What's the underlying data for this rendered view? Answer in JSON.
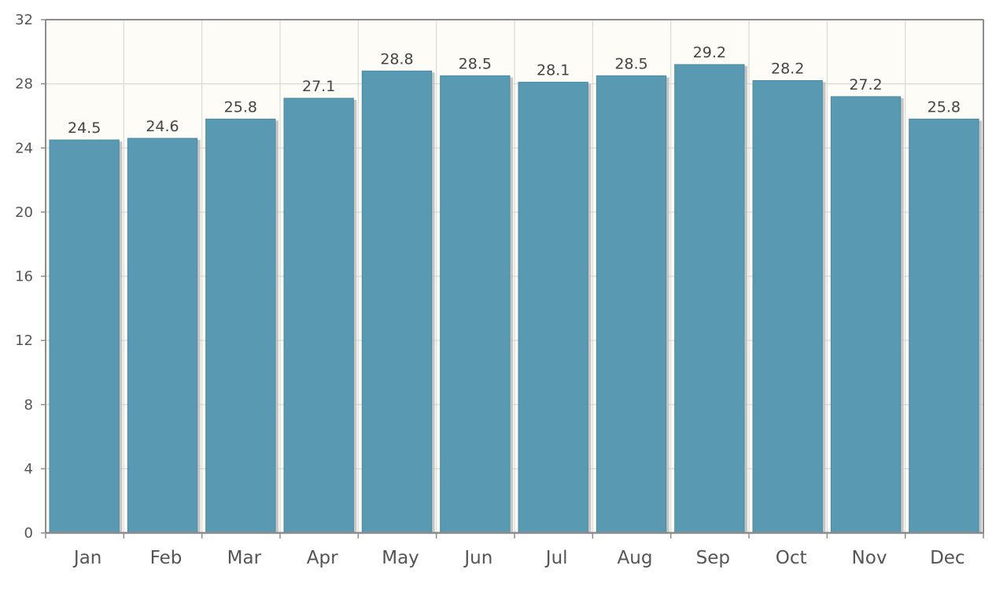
{
  "chart_data": {
    "type": "bar",
    "categories": [
      "Jan",
      "Feb",
      "Mar",
      "Apr",
      "May",
      "Jun",
      "Jul",
      "Aug",
      "Sep",
      "Oct",
      "Nov",
      "Dec"
    ],
    "values": [
      24.5,
      24.6,
      25.8,
      27.1,
      28.8,
      28.5,
      28.1,
      28.5,
      29.2,
      28.2,
      27.2,
      25.8
    ],
    "data_labels": [
      "24.5",
      "24.6",
      "25.8",
      "27.1",
      "28.8",
      "28.5",
      "28.1",
      "28.5",
      "29.2",
      "28.2",
      "27.2",
      "25.8"
    ],
    "y_ticks": [
      0,
      4,
      8,
      12,
      16,
      20,
      24,
      28,
      32
    ],
    "ylim": [
      0,
      32
    ],
    "title": "",
    "xlabel": "",
    "ylabel": "",
    "grid": true,
    "legend": "none",
    "colors": {
      "bar": "#5a99b2",
      "bar_edge": "#4a8aa3",
      "plot_background": "#fdfcf6",
      "grid": "#d9d9d9",
      "axis": "#8c8c8c",
      "shadow": "#bdbdbd"
    }
  }
}
